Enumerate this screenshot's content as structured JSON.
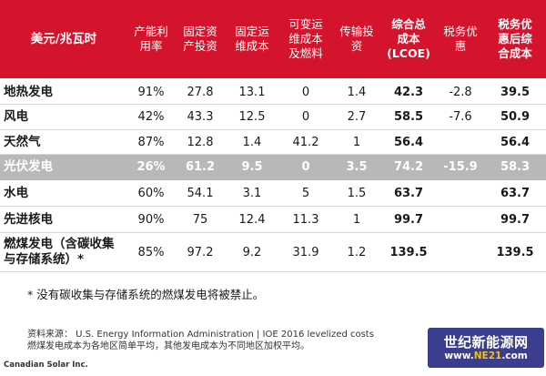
{
  "header": {
    "col0": "美元/兆瓦时",
    "col1": "产能利\n用率",
    "col2": "固定资\n产投资",
    "col3": "固定运\n维成本",
    "col4": "可变运\n维成本\n及燃料",
    "col5": "传输投\n资",
    "col6": "综合总\n成本\n(LCOE)",
    "col7": "税务优\n惠",
    "col8": "税务优\n惠后综\n合成本"
  },
  "rows": [
    {
      "name": "地热发电",
      "cf": "91%",
      "capex": "27.8",
      "fom": "13.1",
      "vom": "0",
      "trans": "1.4",
      "lcoe": "42.3",
      "tax": "-2.8",
      "after": "39.5"
    },
    {
      "name": "风电",
      "cf": "42%",
      "capex": "43.3",
      "fom": "12.5",
      "vom": "0",
      "trans": "2.7",
      "lcoe": "58.5",
      "tax": "-7.6",
      "after": "50.9"
    },
    {
      "name": "天然气",
      "cf": "87%",
      "capex": "12.8",
      "fom": "1.4",
      "vom": "41.2",
      "trans": "1",
      "lcoe": "56.4",
      "tax": "",
      "after": "56.4"
    },
    {
      "name": "光伏发电",
      "cf": "26%",
      "capex": "61.2",
      "fom": "9.5",
      "vom": "0",
      "trans": "3.5",
      "lcoe": "74.2",
      "tax": "-15.9",
      "after": "58.3"
    },
    {
      "name": "水电",
      "cf": "60%",
      "capex": "54.1",
      "fom": "3.1",
      "vom": "5",
      "trans": "1.5",
      "lcoe": "63.7",
      "tax": "",
      "after": "63.7"
    },
    {
      "name": "先进核电",
      "cf": "90%",
      "capex": "75",
      "fom": "12.4",
      "vom": "11.3",
      "trans": "1",
      "lcoe": "99.7",
      "tax": "",
      "after": "99.7"
    },
    {
      "name": "燃煤发电（含碳收集\n与存储系统）*",
      "cf": "85%",
      "capex": "97.2",
      "fom": "9.2",
      "vom": "31.9",
      "trans": "1.2",
      "lcoe": "139.5",
      "tax": "",
      "after": "139.5"
    }
  ],
  "footnote": "* 没有碳收集与存储系统的燃煤发电将被禁止。",
  "source_line1": "资料来源： U.S. Energy Information Administration | IOE 2016 levelized costs",
  "source_line2": "燃煤发电成本为各地区简单平均，其他发电成本为不同地区加权平均。",
  "company": "Canadian Solar Inc.",
  "watermark": {
    "title": "世纪新能源网",
    "url_prefix": "www.",
    "url_brand": "NE21",
    "url_suffix": ".com"
  },
  "colors": {
    "header_bg": "#d4132d",
    "highlight_bg": "#b8b8b8",
    "watermark_bg": "#3b3d8f"
  }
}
